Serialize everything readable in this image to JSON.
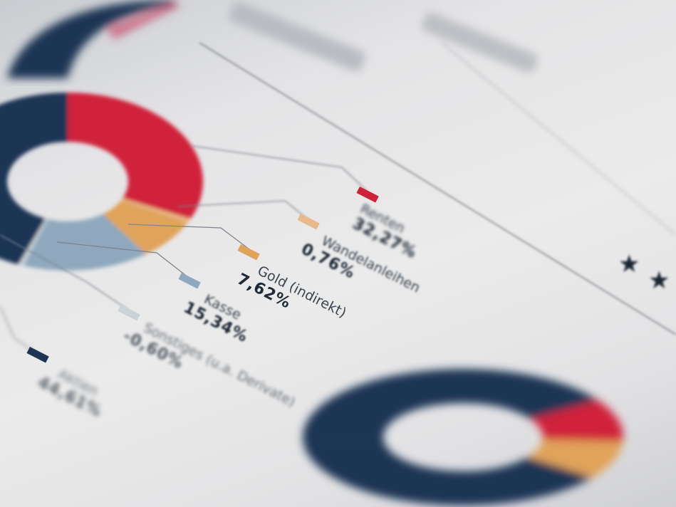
{
  "chart_data": {
    "type": "pie",
    "variant": "donut",
    "slices": [
      {
        "label": "Renten",
        "value": 32.27,
        "display": "32,27%",
        "color": "#d0203a"
      },
      {
        "label": "Wandelanleihen",
        "value": 0.76,
        "display": "0,76%",
        "color": "#e8b98a"
      },
      {
        "label": "Gold (indirekt)",
        "value": 7.62,
        "display": "7,62%",
        "color": "#e0a35a"
      },
      {
        "label": "Kasse",
        "value": 15.34,
        "display": "15,34%",
        "color": "#8fa8bd"
      },
      {
        "label": "Sonstiges (u.a. Derivate)",
        "value": -0.6,
        "display": "-0,60%",
        "color": "#c9d3d8"
      },
      {
        "label": "Aktien",
        "value": 44.61,
        "display": "44,61%",
        "color": "#1d3454"
      }
    ],
    "legend_placement": "right",
    "second_chart_colors": [
      "#1d3454",
      "#d0203a",
      "#e0a35a"
    ]
  },
  "decor": {
    "stars": "★★"
  }
}
